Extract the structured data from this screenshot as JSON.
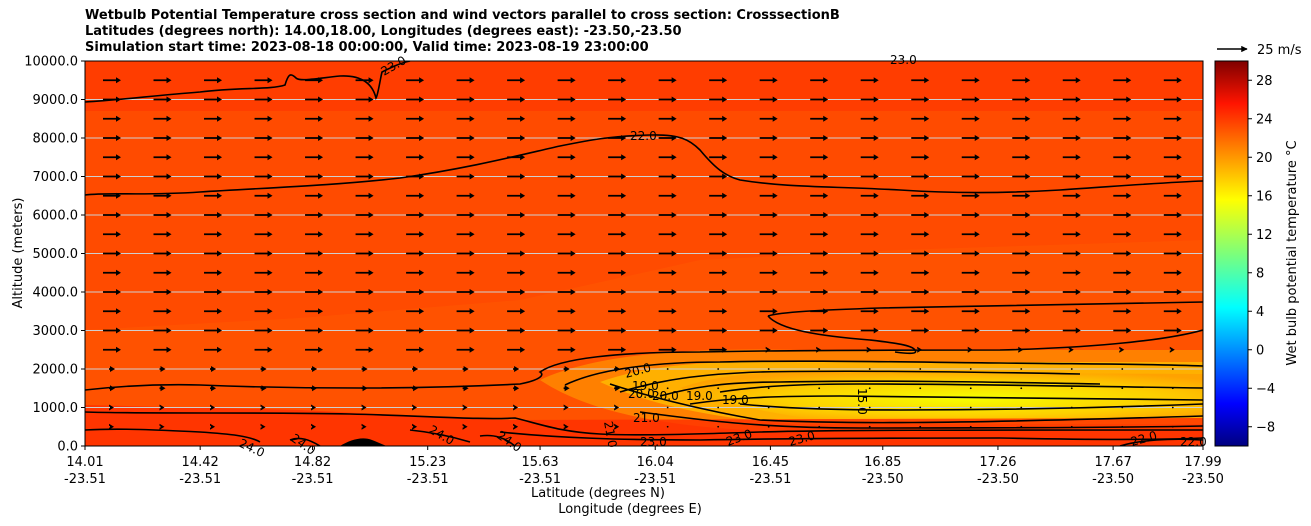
{
  "chart_data": {
    "type": "heatmap",
    "title_lines": [
      "Wetbulb Potential Temperature cross section and wind vectors parallel to cross section: CrosssectionB",
      "Latitudes (degrees north): 14.00,18.00, Longitudes (degrees east): -23.50,-23.50",
      "Simulation start time: 2023-08-18 00:00:00, Valid time: 2023-08-19 23:00:00"
    ],
    "ylabel": "Altitude (meters)",
    "xlabel_lines": [
      "Latitude (degrees N)",
      "Longitude (degrees E)"
    ],
    "ylim": [
      0,
      10000
    ],
    "xlim": [
      14.01,
      17.99
    ],
    "y_ticks": [
      {
        "value": 0,
        "label": "0.0"
      },
      {
        "value": 1000,
        "label": "1000.0"
      },
      {
        "value": 2000,
        "label": "2000.0"
      },
      {
        "value": 3000,
        "label": "3000.0"
      },
      {
        "value": 4000,
        "label": "4000.0"
      },
      {
        "value": 5000,
        "label": "5000.0"
      },
      {
        "value": 6000,
        "label": "6000.0"
      },
      {
        "value": 7000,
        "label": "7000.0"
      },
      {
        "value": 8000,
        "label": "8000.0"
      },
      {
        "value": 9000,
        "label": "9000.0"
      },
      {
        "value": 10000,
        "label": "10000.0"
      }
    ],
    "x_ticks": [
      {
        "value": 14.01,
        "lat": "14.01",
        "lon": "-23.51"
      },
      {
        "value": 14.42,
        "lat": "14.42",
        "lon": "-23.51"
      },
      {
        "value": 14.82,
        "lat": "14.82",
        "lon": "-23.51"
      },
      {
        "value": 15.23,
        "lat": "15.23",
        "lon": "-23.51"
      },
      {
        "value": 15.63,
        "lat": "15.63",
        "lon": "-23.51"
      },
      {
        "value": 16.04,
        "lat": "16.04",
        "lon": "-23.51"
      },
      {
        "value": 16.45,
        "lat": "16.45",
        "lon": "-23.51"
      },
      {
        "value": 16.85,
        "lat": "16.85",
        "lon": "-23.50"
      },
      {
        "value": 17.26,
        "lat": "17.26",
        "lon": "-23.50"
      },
      {
        "value": 17.67,
        "lat": "17.67",
        "lon": "-23.50"
      },
      {
        "value": 17.99,
        "lat": "17.99",
        "lon": "-23.50"
      }
    ],
    "grid": "horizontal",
    "colorbar": {
      "label": "Wet bulb potential temperature $^\\circ$C",
      "label_display": "Wet bulb potential temperature °C",
      "range": [
        -10,
        30
      ],
      "ticks": [
        -8,
        -4,
        0,
        4,
        8,
        12,
        16,
        20,
        24,
        28
      ],
      "colormap": "jet"
    },
    "quiver_key": {
      "label": "25 m/s",
      "speed": 25
    },
    "wind_vectors": {
      "direction": "parallel (pointing +x)",
      "levels_m": [
        500,
        1000,
        1500,
        2000,
        2500,
        3000,
        3500,
        4000,
        4500,
        5000,
        5500,
        6000,
        6500,
        7000,
        7500,
        8000,
        8500,
        9000,
        9500
      ]
    },
    "contours": [
      {
        "level": 15.0,
        "label": "15.0"
      },
      {
        "level": 19.0,
        "label": "19.0"
      },
      {
        "level": 20.0,
        "label": "20.0"
      },
      {
        "level": 21.0,
        "label": "21.0"
      },
      {
        "level": 22.0,
        "label": "22.0"
      },
      {
        "level": 23.0,
        "label": "23.0"
      },
      {
        "level": 24.0,
        "label": "24.0"
      }
    ]
  }
}
